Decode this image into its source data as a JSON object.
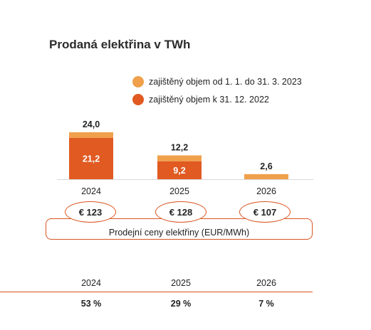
{
  "title": "Prodaná elektřina v TWh",
  "legend": [
    {
      "label": "zajištěný objem od 1. 1. do 31. 3. 2023",
      "color": "#f0a04b"
    },
    {
      "label": "zajištěný objem k 31. 12. 2022",
      "color": "#e05a22"
    }
  ],
  "chart_data": {
    "type": "bar",
    "stacked": true,
    "categories": [
      "2024",
      "2025",
      "2026"
    ],
    "totals": [
      24.0,
      12.2,
      2.6
    ],
    "total_labels": [
      "24,0",
      "12,2",
      "2,6"
    ],
    "series": [
      {
        "name": "zajištěný objem k 31. 12. 2022",
        "values": [
          21.2,
          9.2,
          0
        ],
        "labels": [
          "21,2",
          "9,2",
          ""
        ],
        "color": "#e05a22"
      },
      {
        "name": "zajištěný objem od 1. 1. do 31. 3. 2023",
        "values": [
          2.8,
          3.0,
          2.6
        ],
        "color": "#f0a04b"
      }
    ],
    "ylim": [
      0,
      24
    ]
  },
  "prices": {
    "values": [
      "€ 123",
      "€ 128",
      "€ 107"
    ],
    "label": "Prodejní ceny elektřiny (EUR/MWh)"
  },
  "table": {
    "years": [
      "2024",
      "2025",
      "2026"
    ],
    "values": [
      "53 %",
      "29 %",
      "7 %"
    ]
  }
}
